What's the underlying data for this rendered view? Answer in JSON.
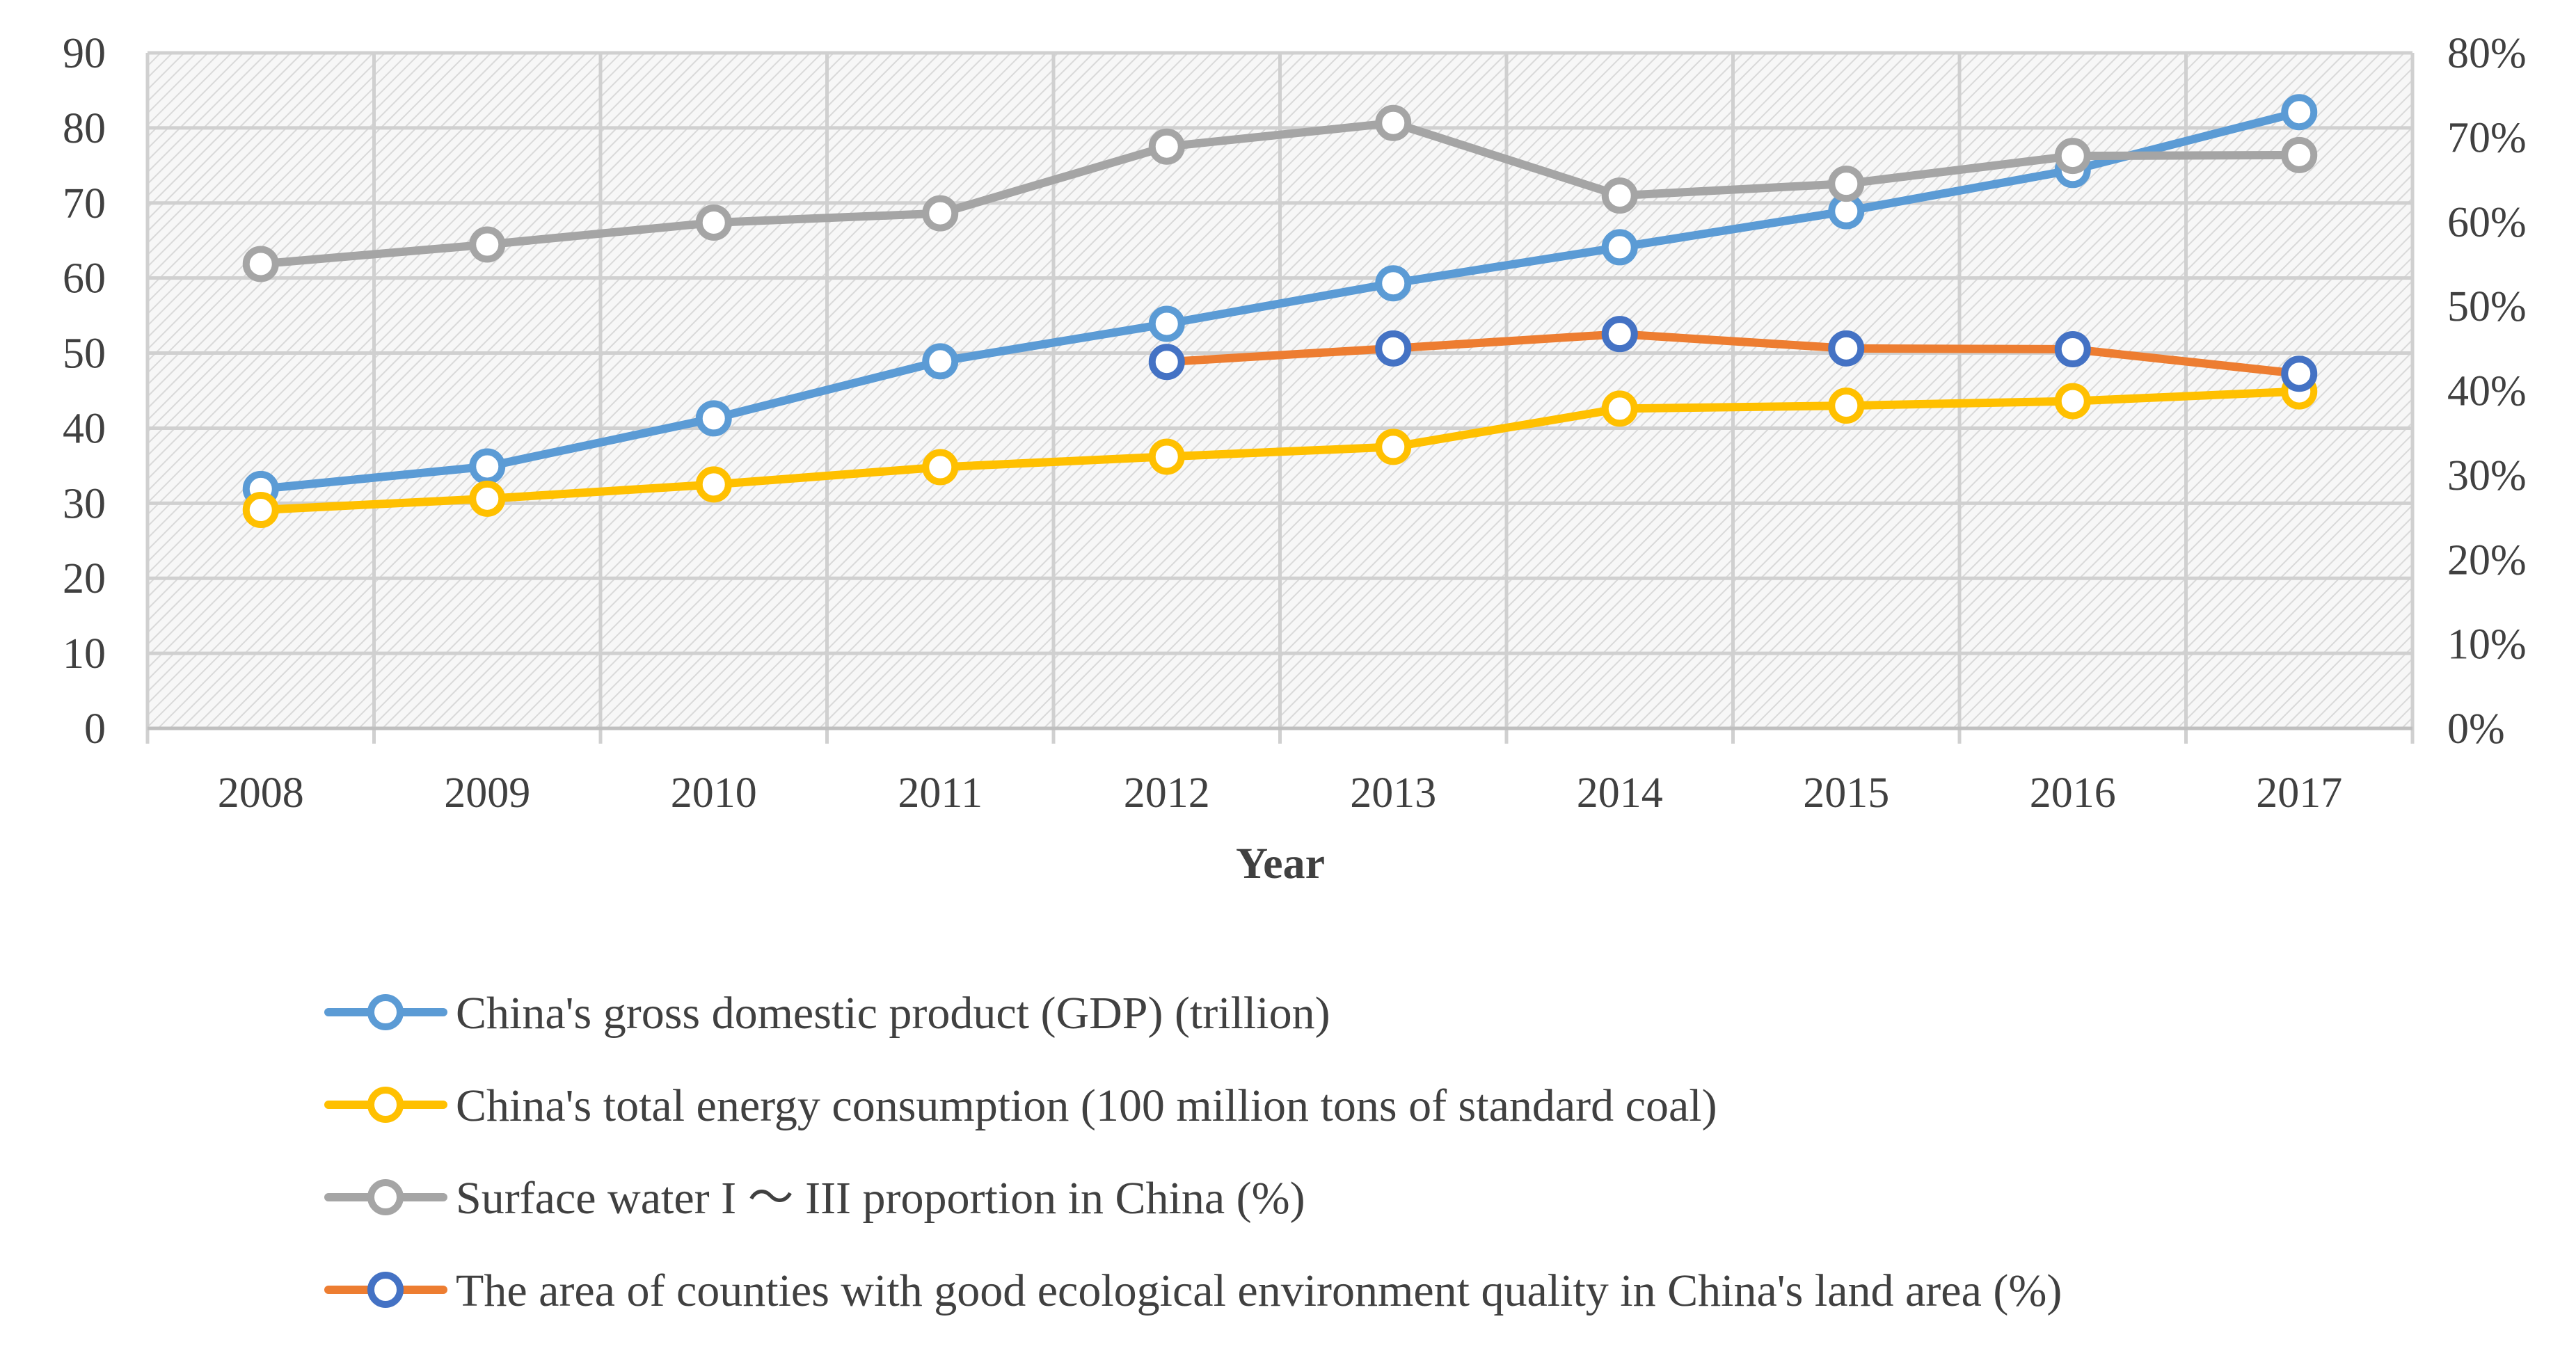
{
  "chart_data": {
    "type": "line",
    "title": "",
    "xlabel": "Year",
    "ylabel_left": "",
    "ylabel_right": "",
    "categories": [
      "2008",
      "2009",
      "2010",
      "2011",
      "2012",
      "2013",
      "2014",
      "2015",
      "2016",
      "2017"
    ],
    "y_left": {
      "min": 0,
      "max": 90,
      "step": 10,
      "ticks": [
        "0",
        "10",
        "20",
        "30",
        "40",
        "50",
        "60",
        "70",
        "80",
        "90"
      ]
    },
    "y_right": {
      "min": 0,
      "max": 80,
      "step": 10,
      "ticks": [
        "0%",
        "10%",
        "20%",
        "30%",
        "40%",
        "50%",
        "60%",
        "70%",
        "80%"
      ]
    },
    "grid": true,
    "legend_position": "bottom",
    "series": [
      {
        "name": "China's gross domestic product (GDP) (trillion)",
        "axis": "left",
        "line_color": "#5B9BD5",
        "marker_color": "#5B9BD5",
        "values": [
          31.9,
          34.9,
          41.3,
          48.9,
          53.9,
          59.3,
          64.1,
          68.9,
          74.4,
          82.1
        ]
      },
      {
        "name": "China's total energy consumption (100 million tons of standard coal)",
        "axis": "left",
        "line_color": "#FFC000",
        "marker_color": "#FFC000",
        "values": [
          29.1,
          30.6,
          32.5,
          34.8,
          36.2,
          37.5,
          42.6,
          43.0,
          43.6,
          44.9
        ]
      },
      {
        "name": "Surface water I ～ III proportion in China (%)",
        "axis": "right",
        "line_color": "#A5A5A5",
        "marker_color": "#A5A5A5",
        "values": [
          55.0,
          57.3,
          59.9,
          61.0,
          68.9,
          71.7,
          63.1,
          64.5,
          67.8,
          67.9
        ]
      },
      {
        "name": "The area of counties with good ecological environment quality in China's land area (%)",
        "axis": "right",
        "line_color": "#ED7D31",
        "marker_color": "#4472C4",
        "values": [
          null,
          null,
          null,
          null,
          43.4,
          45.0,
          46.7,
          45.0,
          44.9,
          42.0
        ]
      }
    ]
  }
}
